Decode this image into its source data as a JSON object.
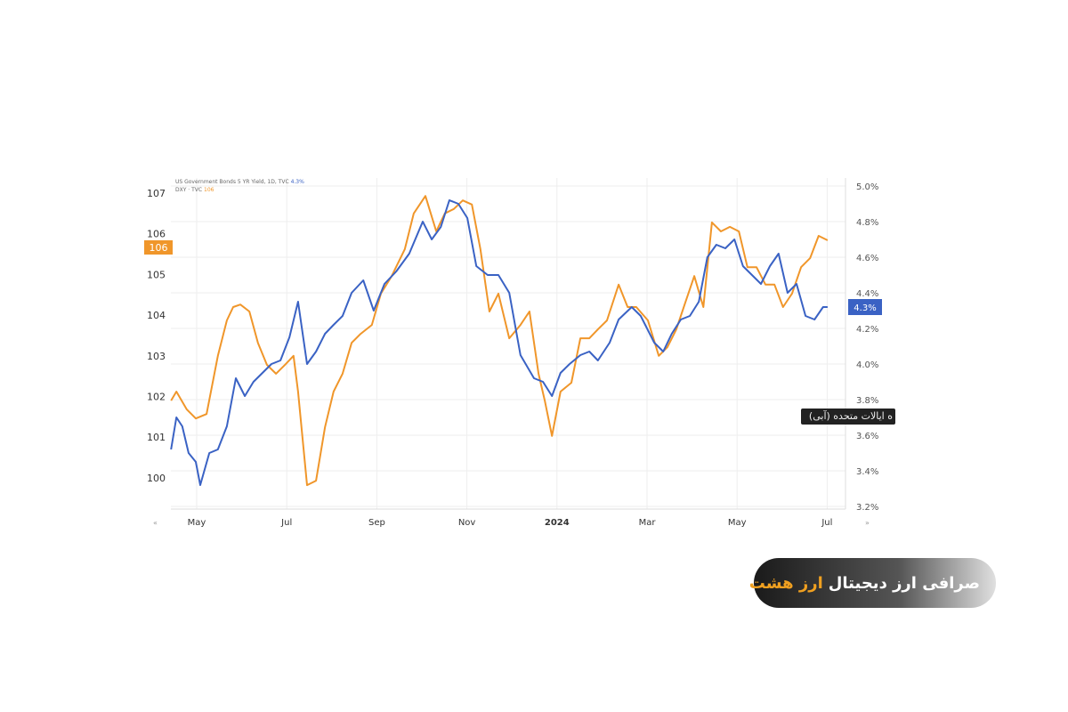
{
  "chart_data": {
    "type": "line",
    "title": "",
    "legend": [
      {
        "name": "US Government Bonds 5 YR Yield, 1D, TVC",
        "last": "4.3%",
        "color": "#3a62c4"
      },
      {
        "name": "DXY · TVC",
        "last": "106",
        "color": "#f0962a"
      }
    ],
    "legend_placement": "top-left",
    "x_unit": "months since May 2023",
    "x_ticks": [
      {
        "label": "May",
        "x": 0
      },
      {
        "label": "Jul",
        "x": 2
      },
      {
        "label": "Sep",
        "x": 4
      },
      {
        "label": "Nov",
        "x": 6
      },
      {
        "label": "2024",
        "x": 8
      },
      {
        "label": "Mar",
        "x": 10
      },
      {
        "label": "May",
        "x": 12
      },
      {
        "label": "Jul",
        "x": 14
      }
    ],
    "left_axis": {
      "ticks": [
        "100",
        "101",
        "102",
        "103",
        "104",
        "105",
        "106",
        "107"
      ],
      "range": [
        99.6,
        107.4
      ]
    },
    "right_axis": {
      "ticks": [
        "3.2%",
        "3.4%",
        "3.6%",
        "3.8%",
        "4.0%",
        "4.2%",
        "4.4%",
        "4.6%",
        "4.8%",
        "5.0%"
      ],
      "range": [
        3.19,
        5.04
      ]
    },
    "last_labels": {
      "left": "106",
      "right": "4.3%"
    },
    "grid": true,
    "series": [
      {
        "name": "DXY",
        "axis": "left",
        "color": "#f0962a",
        "points": [
          [
            -0.57,
            101.9
          ],
          [
            -0.45,
            102.12
          ],
          [
            -0.22,
            101.68
          ],
          [
            -0.02,
            101.46
          ],
          [
            0.22,
            101.57
          ],
          [
            0.47,
            103.0
          ],
          [
            0.67,
            103.87
          ],
          [
            0.81,
            104.2
          ],
          [
            0.97,
            104.26
          ],
          [
            1.17,
            104.09
          ],
          [
            1.36,
            103.32
          ],
          [
            1.56,
            102.78
          ],
          [
            1.76,
            102.56
          ],
          [
            1.96,
            102.78
          ],
          [
            2.15,
            103.0
          ],
          [
            2.25,
            102.12
          ],
          [
            2.45,
            99.82
          ],
          [
            2.65,
            99.93
          ],
          [
            2.85,
            101.25
          ],
          [
            3.04,
            102.12
          ],
          [
            3.24,
            102.56
          ],
          [
            3.44,
            103.32
          ],
          [
            3.64,
            103.54
          ],
          [
            3.89,
            103.76
          ],
          [
            4.09,
            104.53
          ],
          [
            4.33,
            104.96
          ],
          [
            4.62,
            105.62
          ],
          [
            4.82,
            106.5
          ],
          [
            5.08,
            106.93
          ],
          [
            5.32,
            106.06
          ],
          [
            5.51,
            106.5
          ],
          [
            5.71,
            106.61
          ],
          [
            5.91,
            106.82
          ],
          [
            6.11,
            106.72
          ],
          [
            6.3,
            105.62
          ],
          [
            6.5,
            104.09
          ],
          [
            6.7,
            104.53
          ],
          [
            6.94,
            103.43
          ],
          [
            7.19,
            103.76
          ],
          [
            7.39,
            104.09
          ],
          [
            7.59,
            102.56
          ],
          [
            7.73,
            101.9
          ],
          [
            7.89,
            101.03
          ],
          [
            8.08,
            102.12
          ],
          [
            8.32,
            102.34
          ],
          [
            8.52,
            103.43
          ],
          [
            8.72,
            103.43
          ],
          [
            8.91,
            103.65
          ],
          [
            9.11,
            103.87
          ],
          [
            9.37,
            104.75
          ],
          [
            9.57,
            104.2
          ],
          [
            9.76,
            104.2
          ],
          [
            10.02,
            103.87
          ],
          [
            10.26,
            103.0
          ],
          [
            10.45,
            103.21
          ],
          [
            10.65,
            103.65
          ],
          [
            10.85,
            104.31
          ],
          [
            11.05,
            104.96
          ],
          [
            11.25,
            104.2
          ],
          [
            11.44,
            106.28
          ],
          [
            11.64,
            106.06
          ],
          [
            11.84,
            106.17
          ],
          [
            12.04,
            106.06
          ],
          [
            12.23,
            105.18
          ],
          [
            12.43,
            105.18
          ],
          [
            12.63,
            104.75
          ],
          [
            12.83,
            104.75
          ],
          [
            13.02,
            104.2
          ],
          [
            13.22,
            104.53
          ],
          [
            13.42,
            105.18
          ],
          [
            13.62,
            105.4
          ],
          [
            13.81,
            105.95
          ],
          [
            14.01,
            105.84
          ]
        ]
      },
      {
        "name": "US 5Y Yield",
        "axis": "right",
        "color": "#3a62c4",
        "points": [
          [
            -0.57,
            3.52
          ],
          [
            -0.45,
            3.7
          ],
          [
            -0.32,
            3.65
          ],
          [
            -0.18,
            3.5
          ],
          [
            -0.02,
            3.45
          ],
          [
            0.08,
            3.32
          ],
          [
            0.28,
            3.5
          ],
          [
            0.47,
            3.52
          ],
          [
            0.67,
            3.65
          ],
          [
            0.87,
            3.92
          ],
          [
            1.07,
            3.82
          ],
          [
            1.26,
            3.9
          ],
          [
            1.46,
            3.95
          ],
          [
            1.66,
            4.0
          ],
          [
            1.86,
            4.02
          ],
          [
            2.06,
            4.15
          ],
          [
            2.25,
            4.35
          ],
          [
            2.45,
            4.0
          ],
          [
            2.65,
            4.07
          ],
          [
            2.85,
            4.17
          ],
          [
            3.04,
            4.22
          ],
          [
            3.24,
            4.27
          ],
          [
            3.44,
            4.4
          ],
          [
            3.7,
            4.47
          ],
          [
            3.93,
            4.3
          ],
          [
            4.17,
            4.45
          ],
          [
            4.43,
            4.52
          ],
          [
            4.72,
            4.62
          ],
          [
            5.02,
            4.8
          ],
          [
            5.22,
            4.7
          ],
          [
            5.42,
            4.77
          ],
          [
            5.61,
            4.92
          ],
          [
            5.81,
            4.9
          ],
          [
            6.01,
            4.82
          ],
          [
            6.21,
            4.55
          ],
          [
            6.46,
            4.5
          ],
          [
            6.7,
            4.5
          ],
          [
            6.94,
            4.4
          ],
          [
            7.19,
            4.05
          ],
          [
            7.49,
            3.92
          ],
          [
            7.69,
            3.9
          ],
          [
            7.89,
            3.82
          ],
          [
            8.08,
            3.95
          ],
          [
            8.28,
            4.0
          ],
          [
            8.52,
            4.05
          ],
          [
            8.72,
            4.07
          ],
          [
            8.91,
            4.02
          ],
          [
            9.17,
            4.12
          ],
          [
            9.37,
            4.25
          ],
          [
            9.66,
            4.32
          ],
          [
            9.86,
            4.27
          ],
          [
            10.16,
            4.12
          ],
          [
            10.36,
            4.07
          ],
          [
            10.55,
            4.17
          ],
          [
            10.75,
            4.25
          ],
          [
            10.95,
            4.27
          ],
          [
            11.15,
            4.35
          ],
          [
            11.34,
            4.6
          ],
          [
            11.54,
            4.67
          ],
          [
            11.74,
            4.65
          ],
          [
            11.94,
            4.7
          ],
          [
            12.13,
            4.55
          ],
          [
            12.33,
            4.5
          ],
          [
            12.53,
            4.45
          ],
          [
            12.73,
            4.55
          ],
          [
            12.92,
            4.62
          ],
          [
            13.12,
            4.4
          ],
          [
            13.32,
            4.45
          ],
          [
            13.52,
            4.27
          ],
          [
            13.72,
            4.25
          ],
          [
            13.91,
            4.32
          ],
          [
            14.01,
            4.32
          ]
        ]
      }
    ]
  },
  "tooltip": "ه ایالات متحده (آبی)",
  "banner": {
    "text": "صرافی ارز دیجیتال",
    "highlight": "ارز هشت"
  }
}
